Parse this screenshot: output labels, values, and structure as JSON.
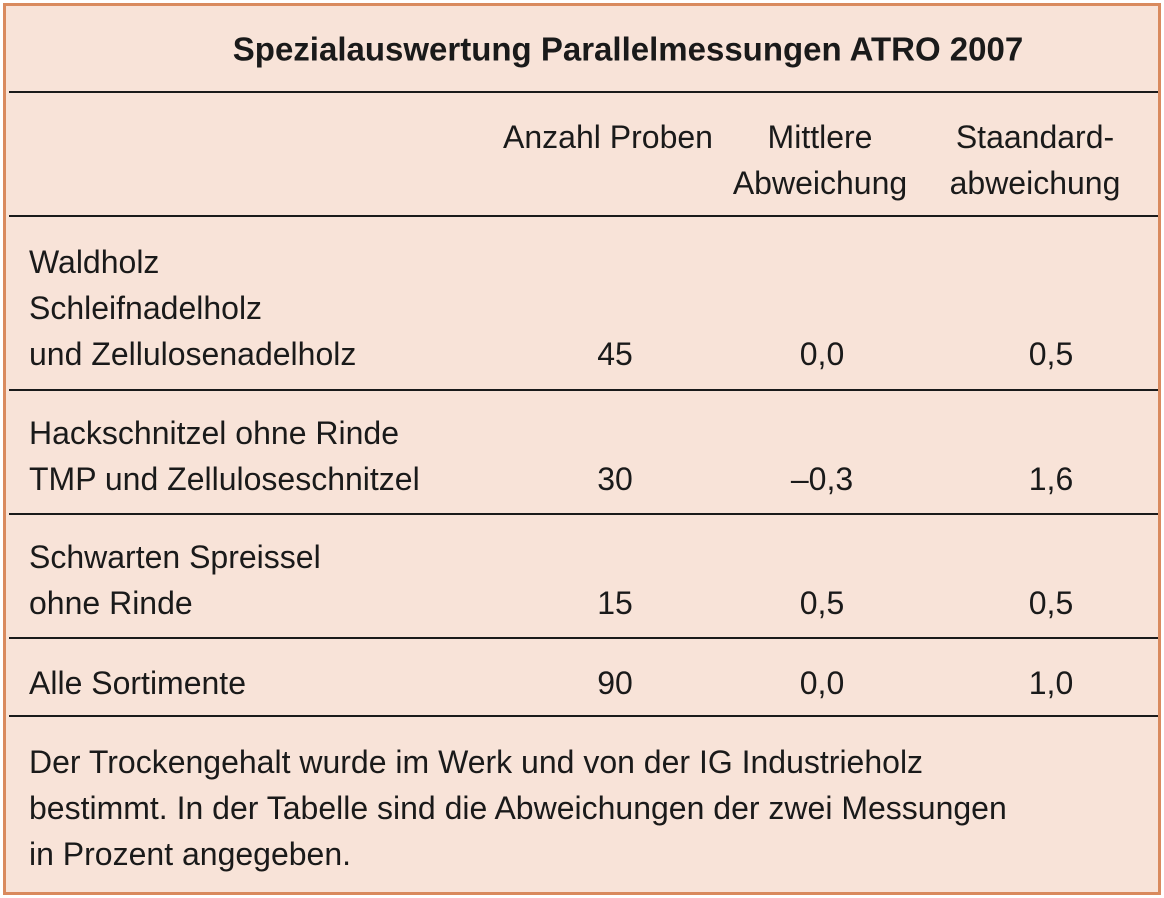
{
  "header": {
    "title": "Spezialauswertung Parallelmessungen ATRO 2007"
  },
  "table": {
    "columns": [
      [
        "Anzahl Proben"
      ],
      [
        "Mittlere",
        "Abweichung"
      ],
      [
        "Staandard-",
        "abweichung"
      ]
    ],
    "rows": [
      {
        "label": [
          "Waldholz",
          "Schleifnadelholz",
          "und Zellulosenadelholz"
        ],
        "values": [
          "45",
          "0,0",
          "0,5"
        ]
      },
      {
        "label": [
          "Hackschnitzel ohne Rinde",
          "TMP und Zelluloseschnitzel"
        ],
        "values": [
          "30",
          "–0,3",
          "1,6"
        ]
      },
      {
        "label": [
          "Schwarten Spreissel",
          "ohne Rinde"
        ],
        "values": [
          "15",
          "0,5",
          "0,5"
        ]
      },
      {
        "label": [
          "Alle Sortimente"
        ],
        "values": [
          "90",
          "0,0",
          "1,0"
        ]
      }
    ]
  },
  "footnote": [
    "Der Trockengehalt wurde im Werk und von der IG Industrieholz",
    "bestimmt. In der Tabelle sind die Abweichungen der zwei Messungen",
    "in Prozent angegeben."
  ]
}
